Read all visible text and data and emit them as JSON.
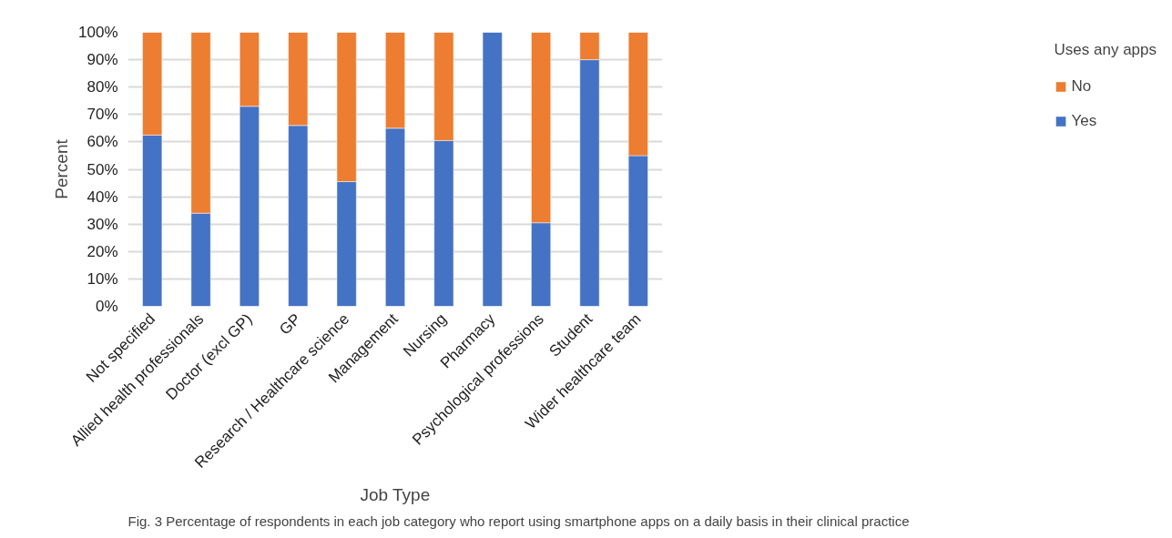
{
  "chart_data": {
    "type": "bar",
    "stacked": true,
    "xlabel": "Job Type",
    "ylabel": "Percent",
    "legend_title": "Uses any apps",
    "categories": [
      "Not specified",
      "Allied health professionals",
      "Doctor (excl GP)",
      "GP",
      "Research / Healthcare science",
      "Management",
      "Nursing",
      "Pharmacy",
      "Psychological professions",
      "Student",
      "Wider healthcare team"
    ],
    "series": [
      {
        "name": "Yes",
        "color": "#4472c4",
        "values": [
          62.5,
          34,
          73,
          66,
          45.5,
          65,
          60.5,
          100,
          30.5,
          90,
          55
        ]
      },
      {
        "name": "No",
        "color": "#ed7d31",
        "values": [
          37.5,
          66,
          27,
          34,
          54.5,
          35,
          39.5,
          null,
          69.5,
          10,
          45
        ]
      }
    ],
    "ylim": [
      0,
      100
    ],
    "yticks": [
      {
        "value": 0,
        "label": "0%"
      },
      {
        "value": 10,
        "label": "10%"
      },
      {
        "value": 20,
        "label": "20%"
      },
      {
        "value": 30,
        "label": "30%"
      },
      {
        "value": 40,
        "label": "40%"
      },
      {
        "value": 50,
        "label": "50%"
      },
      {
        "value": 60,
        "label": "60%"
      },
      {
        "value": 70,
        "label": "70%"
      },
      {
        "value": 80,
        "label": "80%"
      },
      {
        "value": 90,
        "label": "90%"
      },
      {
        "value": 100,
        "label": "100%"
      }
    ],
    "grid": "y",
    "legend": "right",
    "annotations": [
      "Fig. 3  Percentage of respondents in each job category who report using smartphone apps on a daily basis in their clinical practice"
    ]
  }
}
